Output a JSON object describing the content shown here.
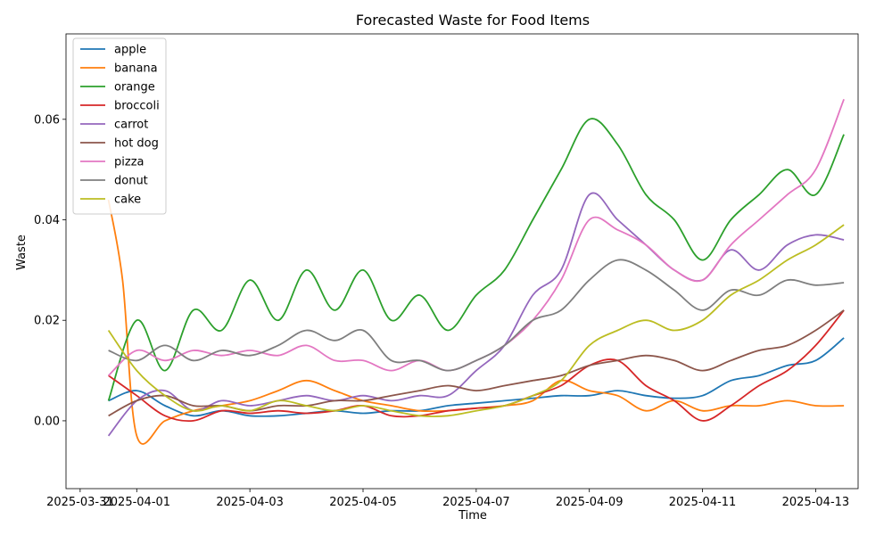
{
  "chart_data": {
    "type": "line",
    "title": "Forecasted Waste for Food Items",
    "xlabel": "Time",
    "ylabel": "Waste",
    "x_tick_labels": [
      "2025-03-31",
      "2025-04-01",
      "2025-04-03",
      "2025-04-05",
      "2025-04-07",
      "2025-04-09",
      "2025-04-11",
      "2025-04-13"
    ],
    "x_tick_dates": [
      "2025-03-31",
      "2025-04-01",
      "2025-04-03",
      "2025-04-05",
      "2025-04-07",
      "2025-04-09",
      "2025-04-11",
      "2025-04-13"
    ],
    "y_ticks": [
      0.0,
      0.02,
      0.04,
      0.06
    ],
    "y_tick_labels": [
      "0.00",
      "0.02",
      "0.04",
      "0.06"
    ],
    "xlim": [
      "2025-03-30T18:00",
      "2025-04-13T18:00"
    ],
    "ylim": [
      -0.0135,
      0.077
    ],
    "legend_position": "upper-left",
    "grid": false,
    "series": [
      {
        "name": "apple",
        "color": "#1f77b4",
        "x": [
          "2025-03-31T12:00",
          "2025-04-01T00:00",
          "2025-04-01T12:00",
          "2025-04-02T00:00",
          "2025-04-02T12:00",
          "2025-04-03T00:00",
          "2025-04-03T12:00",
          "2025-04-04T00:00",
          "2025-04-04T12:00",
          "2025-04-05T00:00",
          "2025-04-05T12:00",
          "2025-04-06T00:00",
          "2025-04-06T12:00",
          "2025-04-07T00:00",
          "2025-04-07T12:00",
          "2025-04-08T00:00",
          "2025-04-08T12:00",
          "2025-04-09T00:00",
          "2025-04-09T12:00",
          "2025-04-10T00:00",
          "2025-04-10T12:00",
          "2025-04-11T00:00",
          "2025-04-11T12:00",
          "2025-04-12T00:00",
          "2025-04-12T12:00",
          "2025-04-13T00:00",
          "2025-04-13T12:00"
        ],
        "values": [
          0.004,
          0.006,
          0.003,
          0.001,
          0.002,
          0.001,
          0.001,
          0.0015,
          0.002,
          0.0015,
          0.002,
          0.002,
          0.003,
          0.0035,
          0.004,
          0.0045,
          0.005,
          0.005,
          0.006,
          0.005,
          0.0045,
          0.005,
          0.008,
          0.009,
          0.011,
          0.012,
          0.0165
        ]
      },
      {
        "name": "banana",
        "color": "#ff7f0e",
        "x": [
          "2025-03-31T12:00",
          "2025-03-31T18:00",
          "2025-04-01T00:00",
          "2025-04-01T12:00",
          "2025-04-02T00:00",
          "2025-04-02T12:00",
          "2025-04-03T00:00",
          "2025-04-03T12:00",
          "2025-04-04T00:00",
          "2025-04-04T12:00",
          "2025-04-05T00:00",
          "2025-04-05T12:00",
          "2025-04-06T00:00",
          "2025-04-06T12:00",
          "2025-04-07T00:00",
          "2025-04-07T12:00",
          "2025-04-08T00:00",
          "2025-04-08T12:00",
          "2025-04-09T00:00",
          "2025-04-09T12:00",
          "2025-04-10T00:00",
          "2025-04-10T12:00",
          "2025-04-11T00:00",
          "2025-04-11T12:00",
          "2025-04-12T00:00",
          "2025-04-12T12:00",
          "2025-04-13T00:00",
          "2025-04-13T12:00"
        ],
        "values": [
          0.044,
          0.028,
          -0.003,
          0.0,
          0.002,
          0.003,
          0.004,
          0.006,
          0.008,
          0.006,
          0.004,
          0.003,
          0.002,
          0.002,
          0.0025,
          0.003,
          0.004,
          0.008,
          0.006,
          0.005,
          0.002,
          0.004,
          0.002,
          0.003,
          0.003,
          0.004,
          0.003,
          0.003
        ]
      },
      {
        "name": "orange",
        "color": "#2ca02c",
        "x": [
          "2025-03-31T12:00",
          "2025-04-01T00:00",
          "2025-04-01T12:00",
          "2025-04-02T00:00",
          "2025-04-02T12:00",
          "2025-04-03T00:00",
          "2025-04-03T12:00",
          "2025-04-04T00:00",
          "2025-04-04T12:00",
          "2025-04-05T00:00",
          "2025-04-05T12:00",
          "2025-04-06T00:00",
          "2025-04-06T12:00",
          "2025-04-07T00:00",
          "2025-04-07T12:00",
          "2025-04-08T00:00",
          "2025-04-08T12:00",
          "2025-04-09T00:00",
          "2025-04-09T12:00",
          "2025-04-10T00:00",
          "2025-04-10T12:00",
          "2025-04-11T00:00",
          "2025-04-11T12:00",
          "2025-04-12T00:00",
          "2025-04-12T12:00",
          "2025-04-13T00:00",
          "2025-04-13T12:00"
        ],
        "values": [
          0.004,
          0.02,
          0.01,
          0.022,
          0.018,
          0.028,
          0.02,
          0.03,
          0.022,
          0.03,
          0.02,
          0.025,
          0.018,
          0.025,
          0.03,
          0.04,
          0.05,
          0.06,
          0.055,
          0.045,
          0.04,
          0.032,
          0.04,
          0.045,
          0.05,
          0.045,
          0.057
        ]
      },
      {
        "name": "broccoli",
        "color": "#d62728",
        "x": [
          "2025-03-31T12:00",
          "2025-04-01T00:00",
          "2025-04-01T12:00",
          "2025-04-02T00:00",
          "2025-04-02T12:00",
          "2025-04-03T00:00",
          "2025-04-03T12:00",
          "2025-04-04T00:00",
          "2025-04-04T12:00",
          "2025-04-05T00:00",
          "2025-04-05T12:00",
          "2025-04-06T00:00",
          "2025-04-06T12:00",
          "2025-04-07T00:00",
          "2025-04-07T12:00",
          "2025-04-08T00:00",
          "2025-04-08T12:00",
          "2025-04-09T00:00",
          "2025-04-09T12:00",
          "2025-04-10T00:00",
          "2025-04-10T12:00",
          "2025-04-11T00:00",
          "2025-04-11T12:00",
          "2025-04-12T00:00",
          "2025-04-12T12:00",
          "2025-04-13T00:00",
          "2025-04-13T12:00"
        ],
        "values": [
          0.009,
          0.005,
          0.001,
          0.0,
          0.002,
          0.0015,
          0.002,
          0.0015,
          0.002,
          0.003,
          0.001,
          0.001,
          0.002,
          0.0025,
          0.003,
          0.005,
          0.007,
          0.011,
          0.012,
          0.007,
          0.004,
          0.0,
          0.003,
          0.007,
          0.01,
          0.015,
          0.022
        ]
      },
      {
        "name": "carrot",
        "color": "#9467bd",
        "x": [
          "2025-03-31T12:00",
          "2025-04-01T00:00",
          "2025-04-01T12:00",
          "2025-04-02T00:00",
          "2025-04-02T12:00",
          "2025-04-03T00:00",
          "2025-04-03T12:00",
          "2025-04-04T00:00",
          "2025-04-04T12:00",
          "2025-04-05T00:00",
          "2025-04-05T12:00",
          "2025-04-06T00:00",
          "2025-04-06T12:00",
          "2025-04-07T00:00",
          "2025-04-07T12:00",
          "2025-04-08T00:00",
          "2025-04-08T12:00",
          "2025-04-09T00:00",
          "2025-04-09T12:00",
          "2025-04-10T00:00",
          "2025-04-10T12:00",
          "2025-04-11T00:00",
          "2025-04-11T12:00",
          "2025-04-12T00:00",
          "2025-04-12T12:00",
          "2025-04-13T00:00",
          "2025-04-13T12:00"
        ],
        "values": [
          -0.003,
          0.004,
          0.006,
          0.002,
          0.004,
          0.003,
          0.004,
          0.005,
          0.004,
          0.005,
          0.004,
          0.005,
          0.005,
          0.01,
          0.015,
          0.025,
          0.03,
          0.045,
          0.04,
          0.035,
          0.03,
          0.028,
          0.034,
          0.03,
          0.035,
          0.037,
          0.036
        ]
      },
      {
        "name": "hot dog",
        "color": "#8c564b",
        "x": [
          "2025-03-31T12:00",
          "2025-04-01T00:00",
          "2025-04-01T12:00",
          "2025-04-02T00:00",
          "2025-04-02T12:00",
          "2025-04-03T00:00",
          "2025-04-03T12:00",
          "2025-04-04T00:00",
          "2025-04-04T12:00",
          "2025-04-05T00:00",
          "2025-04-05T12:00",
          "2025-04-06T00:00",
          "2025-04-06T12:00",
          "2025-04-07T00:00",
          "2025-04-07T12:00",
          "2025-04-08T00:00",
          "2025-04-08T12:00",
          "2025-04-09T00:00",
          "2025-04-09T12:00",
          "2025-04-10T00:00",
          "2025-04-10T12:00",
          "2025-04-11T00:00",
          "2025-04-11T12:00",
          "2025-04-12T00:00",
          "2025-04-12T12:00",
          "2025-04-13T00:00",
          "2025-04-13T12:00"
        ],
        "values": [
          0.001,
          0.004,
          0.005,
          0.003,
          0.003,
          0.002,
          0.003,
          0.003,
          0.004,
          0.004,
          0.005,
          0.006,
          0.007,
          0.006,
          0.007,
          0.008,
          0.009,
          0.011,
          0.012,
          0.013,
          0.012,
          0.01,
          0.012,
          0.014,
          0.015,
          0.018,
          0.022
        ]
      },
      {
        "name": "pizza",
        "color": "#e377c2",
        "x": [
          "2025-03-31T12:00",
          "2025-04-01T00:00",
          "2025-04-01T12:00",
          "2025-04-02T00:00",
          "2025-04-02T12:00",
          "2025-04-03T00:00",
          "2025-04-03T12:00",
          "2025-04-04T00:00",
          "2025-04-04T12:00",
          "2025-04-05T00:00",
          "2025-04-05T12:00",
          "2025-04-06T00:00",
          "2025-04-06T12:00",
          "2025-04-07T00:00",
          "2025-04-07T12:00",
          "2025-04-08T00:00",
          "2025-04-08T12:00",
          "2025-04-09T00:00",
          "2025-04-09T12:00",
          "2025-04-10T00:00",
          "2025-04-10T12:00",
          "2025-04-11T00:00",
          "2025-04-11T12:00",
          "2025-04-12T00:00",
          "2025-04-12T12:00",
          "2025-04-13T00:00",
          "2025-04-13T12:00"
        ],
        "values": [
          0.009,
          0.014,
          0.012,
          0.014,
          0.013,
          0.014,
          0.013,
          0.015,
          0.012,
          0.012,
          0.01,
          0.012,
          0.01,
          0.012,
          0.015,
          0.02,
          0.028,
          0.04,
          0.038,
          0.035,
          0.03,
          0.028,
          0.035,
          0.04,
          0.045,
          0.05,
          0.064
        ]
      },
      {
        "name": "donut",
        "color": "#7f7f7f",
        "x": [
          "2025-03-31T12:00",
          "2025-04-01T00:00",
          "2025-04-01T12:00",
          "2025-04-02T00:00",
          "2025-04-02T12:00",
          "2025-04-03T00:00",
          "2025-04-03T12:00",
          "2025-04-04T00:00",
          "2025-04-04T12:00",
          "2025-04-05T00:00",
          "2025-04-05T12:00",
          "2025-04-06T00:00",
          "2025-04-06T12:00",
          "2025-04-07T00:00",
          "2025-04-07T12:00",
          "2025-04-08T00:00",
          "2025-04-08T12:00",
          "2025-04-09T00:00",
          "2025-04-09T12:00",
          "2025-04-10T00:00",
          "2025-04-10T12:00",
          "2025-04-11T00:00",
          "2025-04-11T12:00",
          "2025-04-12T00:00",
          "2025-04-12T12:00",
          "2025-04-13T00:00",
          "2025-04-13T12:00"
        ],
        "values": [
          0.014,
          0.012,
          0.015,
          0.012,
          0.014,
          0.013,
          0.015,
          0.018,
          0.016,
          0.018,
          0.012,
          0.012,
          0.01,
          0.012,
          0.015,
          0.02,
          0.022,
          0.028,
          0.032,
          0.03,
          0.026,
          0.022,
          0.026,
          0.025,
          0.028,
          0.027,
          0.0275
        ]
      },
      {
        "name": "cake",
        "color": "#bcbd22",
        "x": [
          "2025-03-31T12:00",
          "2025-04-01T00:00",
          "2025-04-01T12:00",
          "2025-04-02T00:00",
          "2025-04-02T12:00",
          "2025-04-03T00:00",
          "2025-04-03T12:00",
          "2025-04-04T00:00",
          "2025-04-04T12:00",
          "2025-04-05T00:00",
          "2025-04-05T12:00",
          "2025-04-06T00:00",
          "2025-04-06T12:00",
          "2025-04-07T00:00",
          "2025-04-07T12:00",
          "2025-04-08T00:00",
          "2025-04-08T12:00",
          "2025-04-09T00:00",
          "2025-04-09T12:00",
          "2025-04-10T00:00",
          "2025-04-10T12:00",
          "2025-04-11T00:00",
          "2025-04-11T12:00",
          "2025-04-12T00:00",
          "2025-04-12T12:00",
          "2025-04-13T00:00",
          "2025-04-13T12:00"
        ],
        "values": [
          0.018,
          0.01,
          0.005,
          0.002,
          0.003,
          0.002,
          0.004,
          0.003,
          0.002,
          0.003,
          0.002,
          0.001,
          0.001,
          0.002,
          0.003,
          0.005,
          0.008,
          0.015,
          0.018,
          0.02,
          0.018,
          0.02,
          0.025,
          0.028,
          0.032,
          0.035,
          0.039
        ]
      }
    ]
  }
}
